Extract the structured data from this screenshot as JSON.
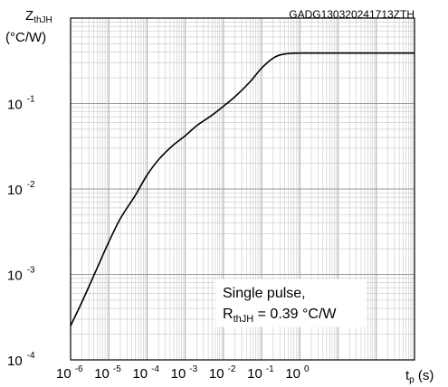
{
  "chart_data": {
    "type": "line",
    "title": "GADG130320241713ZTH",
    "ylabel": {
      "main": "Z",
      "sub": "thJH",
      "unit": "(°C/W)"
    },
    "xlabel": {
      "main": "t",
      "sub": "p",
      "unit": " (s)"
    },
    "x_scale": "log",
    "y_scale": "log",
    "xlim": [
      1e-06,
      1000
    ],
    "ylim": [
      0.0001,
      1
    ],
    "x_ticks": [
      {
        "base": "10",
        "exp": "-6"
      },
      {
        "base": "10",
        "exp": "-5"
      },
      {
        "base": "10",
        "exp": "-4"
      },
      {
        "base": "10",
        "exp": "-3"
      },
      {
        "base": "10",
        "exp": "-2"
      },
      {
        "base": "10",
        "exp": "-1"
      },
      {
        "base": "10",
        "exp": "0"
      }
    ],
    "y_ticks": [
      {
        "base": "10",
        "exp": "-1"
      },
      {
        "base": "10",
        "exp": "-2"
      },
      {
        "base": "10",
        "exp": "-3"
      },
      {
        "base": "10",
        "exp": "-4"
      }
    ],
    "grid": true,
    "annotation": {
      "line1": "Single pulse,",
      "line2_main": "R",
      "line2_sub": "thJH",
      "line2_rest": " = 0.39 °C/W"
    },
    "series": [
      {
        "x": [
          1e-06,
          2e-06,
          5e-06,
          1e-05,
          2e-05,
          5e-05,
          0.0001,
          0.0002,
          0.0005,
          0.001,
          0.002,
          0.005,
          0.01,
          0.02,
          0.05,
          0.1,
          0.2,
          0.3,
          0.5,
          1,
          10,
          1000
        ],
        "y": [
          0.00025,
          0.00048,
          0.0012,
          0.0024,
          0.0045,
          0.0085,
          0.0145,
          0.022,
          0.033,
          0.042,
          0.055,
          0.073,
          0.093,
          0.12,
          0.18,
          0.26,
          0.34,
          0.37,
          0.385,
          0.39,
          0.39,
          0.39
        ]
      }
    ]
  }
}
